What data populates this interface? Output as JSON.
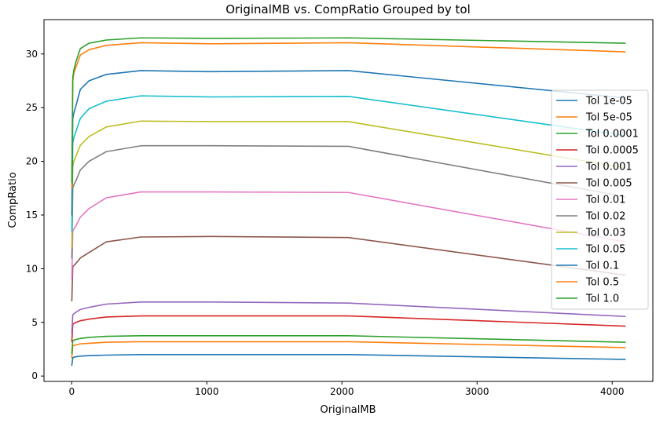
{
  "chart_data": {
    "type": "line",
    "title": "OriginalMB vs. CompRatio Grouped by tol",
    "xlabel": "OriginalMB",
    "ylabel": "CompRatio",
    "xlim": [
      -205,
      4301
    ],
    "ylim": [
      -0.5,
      33.2
    ],
    "xticks": [
      0,
      1000,
      2000,
      3000,
      4000
    ],
    "yticks": [
      0,
      5,
      10,
      15,
      20,
      25,
      30
    ],
    "grid": false,
    "legend_position": "right",
    "x": [
      1,
      8,
      16,
      32,
      64,
      128,
      256,
      512,
      1024,
      2048,
      4096
    ],
    "series": [
      {
        "name": "Tol 1e-05",
        "color": "#1f77b4",
        "values": [
          1.0,
          1.7,
          1.75,
          1.8,
          1.85,
          1.9,
          1.95,
          2.0,
          2.0,
          2.0,
          1.55
        ]
      },
      {
        "name": "Tol 5e-05",
        "color": "#ff7f0e",
        "values": [
          1.7,
          2.8,
          2.85,
          2.9,
          3.0,
          3.05,
          3.15,
          3.2,
          3.2,
          3.2,
          2.65
        ]
      },
      {
        "name": "Tol 0.0001",
        "color": "#2ca02c",
        "values": [
          2.1,
          3.3,
          3.35,
          3.4,
          3.5,
          3.6,
          3.7,
          3.75,
          3.75,
          3.75,
          3.15
        ]
      },
      {
        "name": "Tol 0.0005",
        "color": "#d62728",
        "values": [
          3.2,
          4.8,
          4.9,
          5.0,
          5.15,
          5.3,
          5.5,
          5.6,
          5.6,
          5.6,
          4.65
        ]
      },
      {
        "name": "Tol 0.001",
        "color": "#9467bd",
        "values": [
          4.0,
          5.7,
          5.8,
          5.95,
          6.2,
          6.4,
          6.7,
          6.9,
          6.9,
          6.8,
          5.55
        ]
      },
      {
        "name": "Tol 0.005",
        "color": "#8c564b",
        "values": [
          7.0,
          10.2,
          10.3,
          10.5,
          11.0,
          11.5,
          12.5,
          12.95,
          13.0,
          12.9,
          9.4
        ]
      },
      {
        "name": "Tol 0.01",
        "color": "#e377c2",
        "values": [
          9.0,
          13.5,
          13.7,
          14.0,
          14.8,
          15.6,
          16.6,
          17.15,
          17.15,
          17.1,
          12.5
        ]
      },
      {
        "name": "Tol 0.02",
        "color": "#7f7f7f",
        "values": [
          11.0,
          17.5,
          17.8,
          18.2,
          19.2,
          20.0,
          20.9,
          21.45,
          21.45,
          21.4,
          16.7
        ]
      },
      {
        "name": "Tol 0.03",
        "color": "#bcbd22",
        "values": [
          12.0,
          19.5,
          20.0,
          20.5,
          21.5,
          22.3,
          23.2,
          23.75,
          23.7,
          23.7,
          19.4
        ]
      },
      {
        "name": "Tol 0.05",
        "color": "#17becf",
        "values": [
          13.5,
          21.7,
          22.2,
          22.8,
          24.0,
          24.9,
          25.6,
          26.1,
          26.0,
          26.05,
          22.4
        ]
      },
      {
        "name": "Tol 0.1",
        "color": "#1f77b4",
        "values": [
          15.0,
          24.0,
          24.5,
          25.2,
          26.7,
          27.5,
          28.1,
          28.45,
          28.35,
          28.45,
          25.9
        ]
      },
      {
        "name": "Tol 0.5",
        "color": "#ff7f0e",
        "values": [
          17.5,
          27.5,
          28.2,
          28.8,
          29.9,
          30.4,
          30.8,
          31.05,
          30.95,
          31.05,
          30.2
        ]
      },
      {
        "name": "Tol 1.0",
        "color": "#2ca02c",
        "values": [
          18.0,
          27.8,
          28.5,
          29.3,
          30.5,
          31.0,
          31.3,
          31.5,
          31.45,
          31.5,
          31.0
        ]
      }
    ]
  }
}
